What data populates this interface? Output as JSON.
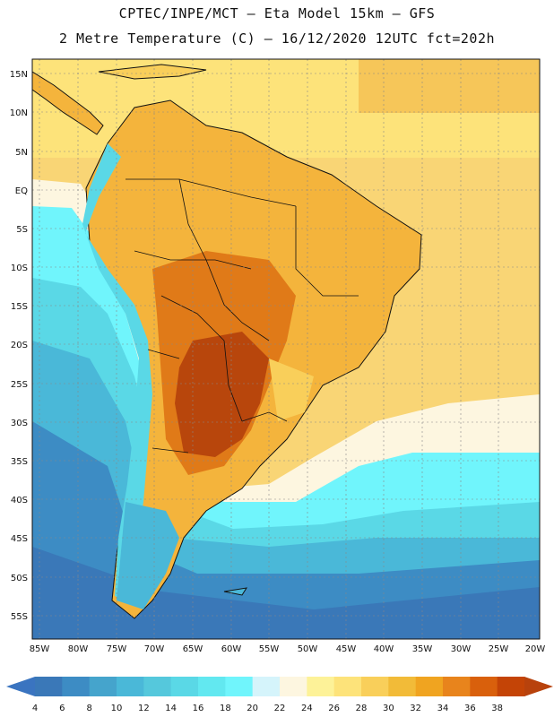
{
  "header": {
    "line1": "CPTEC/INPE/MCT –  Eta Model 15km – GFS",
    "line2": "2 Metre Temperature (C) – 16/12/2020 12UTC fct=202h"
  },
  "axes": {
    "lat_labels": [
      "15N",
      "10N",
      "5N",
      "EQ",
      "5S",
      "10S",
      "15S",
      "20S",
      "25S",
      "30S",
      "35S",
      "40S",
      "45S",
      "50S",
      "55S"
    ],
    "lon_labels": [
      "85W",
      "80W",
      "75W",
      "70W",
      "65W",
      "60W",
      "55W",
      "50W",
      "45W",
      "40W",
      "35W",
      "30W",
      "25W",
      "20W"
    ]
  },
  "colorbar": {
    "labels": [
      "4",
      "6",
      "8",
      "10",
      "12",
      "14",
      "16",
      "18",
      "20",
      "22",
      "24",
      "26",
      "28",
      "30",
      "32",
      "34",
      "36",
      "38"
    ],
    "low_color": "#3a74c0",
    "high_color": "#b8420c",
    "colors": [
      "#3a78b8",
      "#3d8cc4",
      "#45a4cc",
      "#4ab8d8",
      "#55c8dc",
      "#5ad8e6",
      "#62e8f0",
      "#70f5fc",
      "#d5f4fb",
      "#fdf6e0",
      "#fdf298",
      "#fde37a",
      "#f9cf5a",
      "#f2bb38",
      "#f0a420",
      "#e8841c",
      "#d9600c",
      "#c44406"
    ]
  }
}
